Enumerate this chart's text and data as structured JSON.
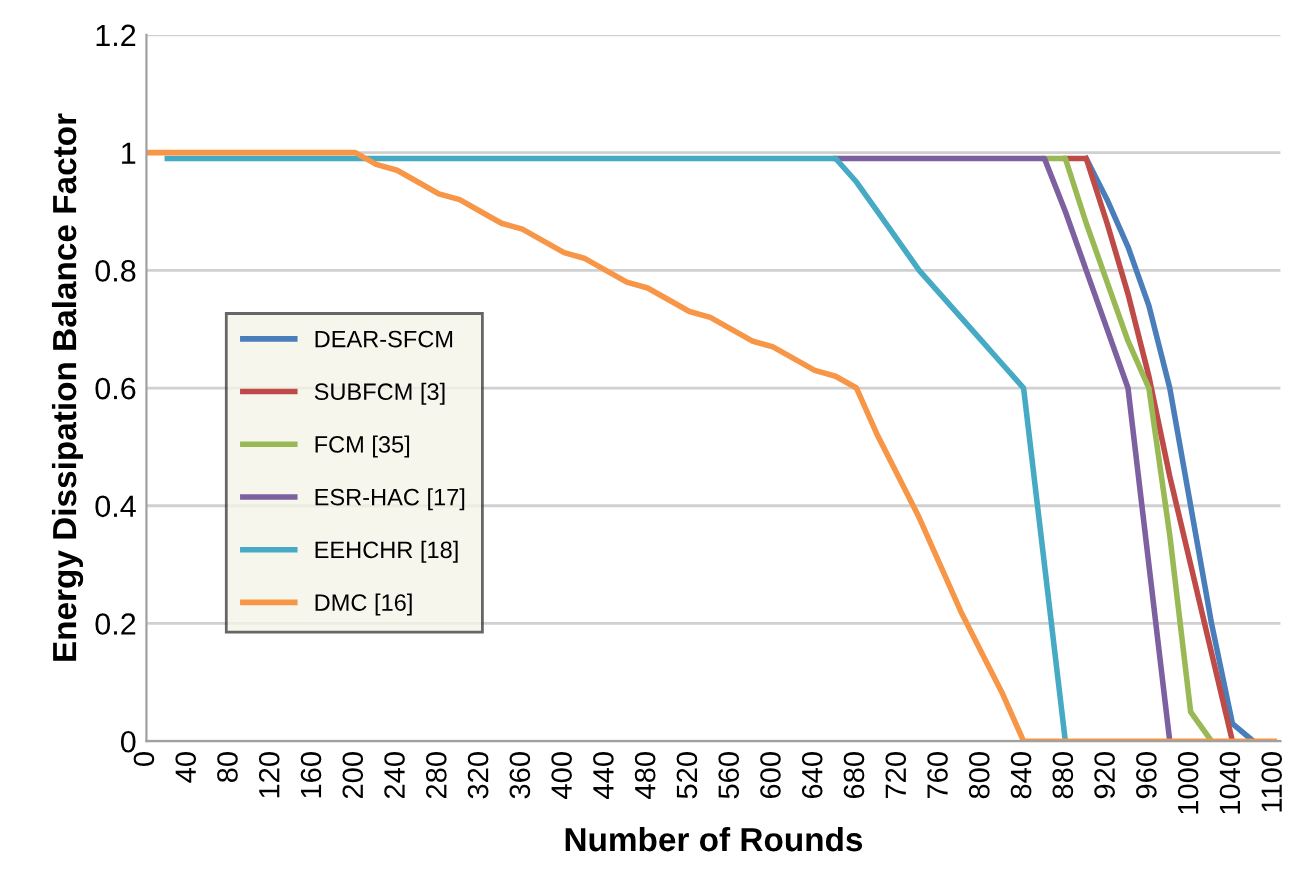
{
  "chart_data": {
    "type": "line",
    "xlabel": "Number of Rounds",
    "ylabel": "Energy Dissipation Balance Factor",
    "categories": [
      "0",
      null,
      "40",
      null,
      "80",
      null,
      "120",
      null,
      "160",
      null,
      "200",
      null,
      "240",
      null,
      "280",
      null,
      "320",
      null,
      "360",
      null,
      "400",
      null,
      "440",
      null,
      "480",
      null,
      "520",
      null,
      "560",
      null,
      "600",
      null,
      "640",
      null,
      "680",
      null,
      "720",
      null,
      "760",
      null,
      "800",
      null,
      "840",
      null,
      "880",
      null,
      "920",
      null,
      "960",
      null,
      "1000",
      null,
      "1040",
      null,
      "1100"
    ],
    "ylim": [
      0,
      1.2
    ],
    "yticks": [
      0,
      0.2,
      0.4,
      0.6,
      0.8,
      1,
      1.2
    ],
    "grid": "y",
    "legend": "left",
    "marker": "none",
    "line_style": "solid",
    "series": [
      {
        "name": "DEAR-SFCM",
        "color": "#4a7ebb",
        "values": [
          null,
          null,
          null,
          null,
          null,
          null,
          null,
          null,
          null,
          null,
          null,
          null,
          null,
          null,
          null,
          null,
          null,
          null,
          null,
          null,
          null,
          null,
          null,
          null,
          null,
          null,
          null,
          null,
          null,
          null,
          null,
          null,
          null,
          null,
          null,
          null,
          null,
          null,
          null,
          null,
          null,
          null,
          null,
          null,
          null,
          0.99,
          0.92,
          0.84,
          0.74,
          0.6,
          0.4,
          0.2,
          0.03,
          0,
          null
        ]
      },
      {
        "name": "SUBFCM [3]",
        "color": "#be4b48",
        "values": [
          null,
          null,
          null,
          null,
          null,
          null,
          null,
          null,
          null,
          null,
          null,
          null,
          null,
          null,
          null,
          null,
          null,
          null,
          null,
          null,
          null,
          null,
          null,
          null,
          null,
          null,
          null,
          null,
          null,
          null,
          null,
          null,
          null,
          null,
          null,
          null,
          null,
          null,
          null,
          null,
          null,
          null,
          null,
          null,
          0.99,
          0.99,
          0.88,
          0.76,
          0.62,
          0.45,
          0.3,
          0.15,
          0,
          null,
          null
        ]
      },
      {
        "name": "FCM [35]",
        "color": "#98b954",
        "values": [
          null,
          null,
          null,
          null,
          null,
          null,
          null,
          null,
          null,
          null,
          null,
          null,
          null,
          null,
          null,
          null,
          null,
          null,
          null,
          null,
          null,
          null,
          null,
          null,
          null,
          null,
          null,
          null,
          null,
          null,
          null,
          null,
          null,
          null,
          null,
          null,
          null,
          null,
          null,
          null,
          null,
          null,
          null,
          0.99,
          0.99,
          0.88,
          0.78,
          0.68,
          0.6,
          0.35,
          0.05,
          0,
          null,
          null,
          null
        ]
      },
      {
        "name": "ESR-HAC [17]",
        "color": "#7d60a0",
        "values": [
          null,
          null,
          null,
          null,
          null,
          null,
          null,
          null,
          null,
          null,
          null,
          null,
          null,
          null,
          null,
          null,
          null,
          null,
          null,
          null,
          null,
          null,
          null,
          null,
          null,
          null,
          null,
          null,
          null,
          null,
          null,
          null,
          null,
          0.99,
          0.99,
          0.99,
          0.99,
          0.99,
          0.99,
          0.99,
          0.99,
          0.99,
          0.99,
          0.99,
          0.9,
          0.8,
          0.7,
          0.6,
          0.3,
          0,
          null,
          null,
          null,
          null,
          null
        ]
      },
      {
        "name": "EEHCHR [18]",
        "color": "#46aac5",
        "values": [
          null,
          0.99,
          0.99,
          0.99,
          0.99,
          0.99,
          0.99,
          0.99,
          0.99,
          0.99,
          0.99,
          0.99,
          0.99,
          0.99,
          0.99,
          0.99,
          0.99,
          0.99,
          0.99,
          0.99,
          0.99,
          0.99,
          0.99,
          0.99,
          0.99,
          0.99,
          0.99,
          0.99,
          0.99,
          0.99,
          0.99,
          0.99,
          0.99,
          0.99,
          0.95,
          0.9,
          0.85,
          0.8,
          0.76,
          0.72,
          0.68,
          0.64,
          0.6,
          0.3,
          0,
          null,
          null,
          null,
          null,
          null,
          null,
          null,
          null,
          null,
          null
        ]
      },
      {
        "name": "DMC [16]",
        "color": "#f79646",
        "values": [
          1,
          1,
          1,
          1,
          1,
          1,
          1,
          1,
          1,
          1,
          1,
          0.98,
          0.97,
          0.95,
          0.93,
          0.92,
          0.9,
          0.88,
          0.87,
          0.85,
          0.83,
          0.82,
          0.8,
          0.78,
          0.77,
          0.75,
          0.73,
          0.72,
          0.7,
          0.68,
          0.67,
          0.65,
          0.63,
          0.62,
          0.6,
          0.52,
          0.45,
          0.38,
          0.3,
          0.22,
          0.15,
          0.08,
          0,
          0,
          0,
          0,
          0,
          0,
          0,
          0,
          0,
          0,
          0,
          0,
          0
        ]
      }
    ]
  }
}
